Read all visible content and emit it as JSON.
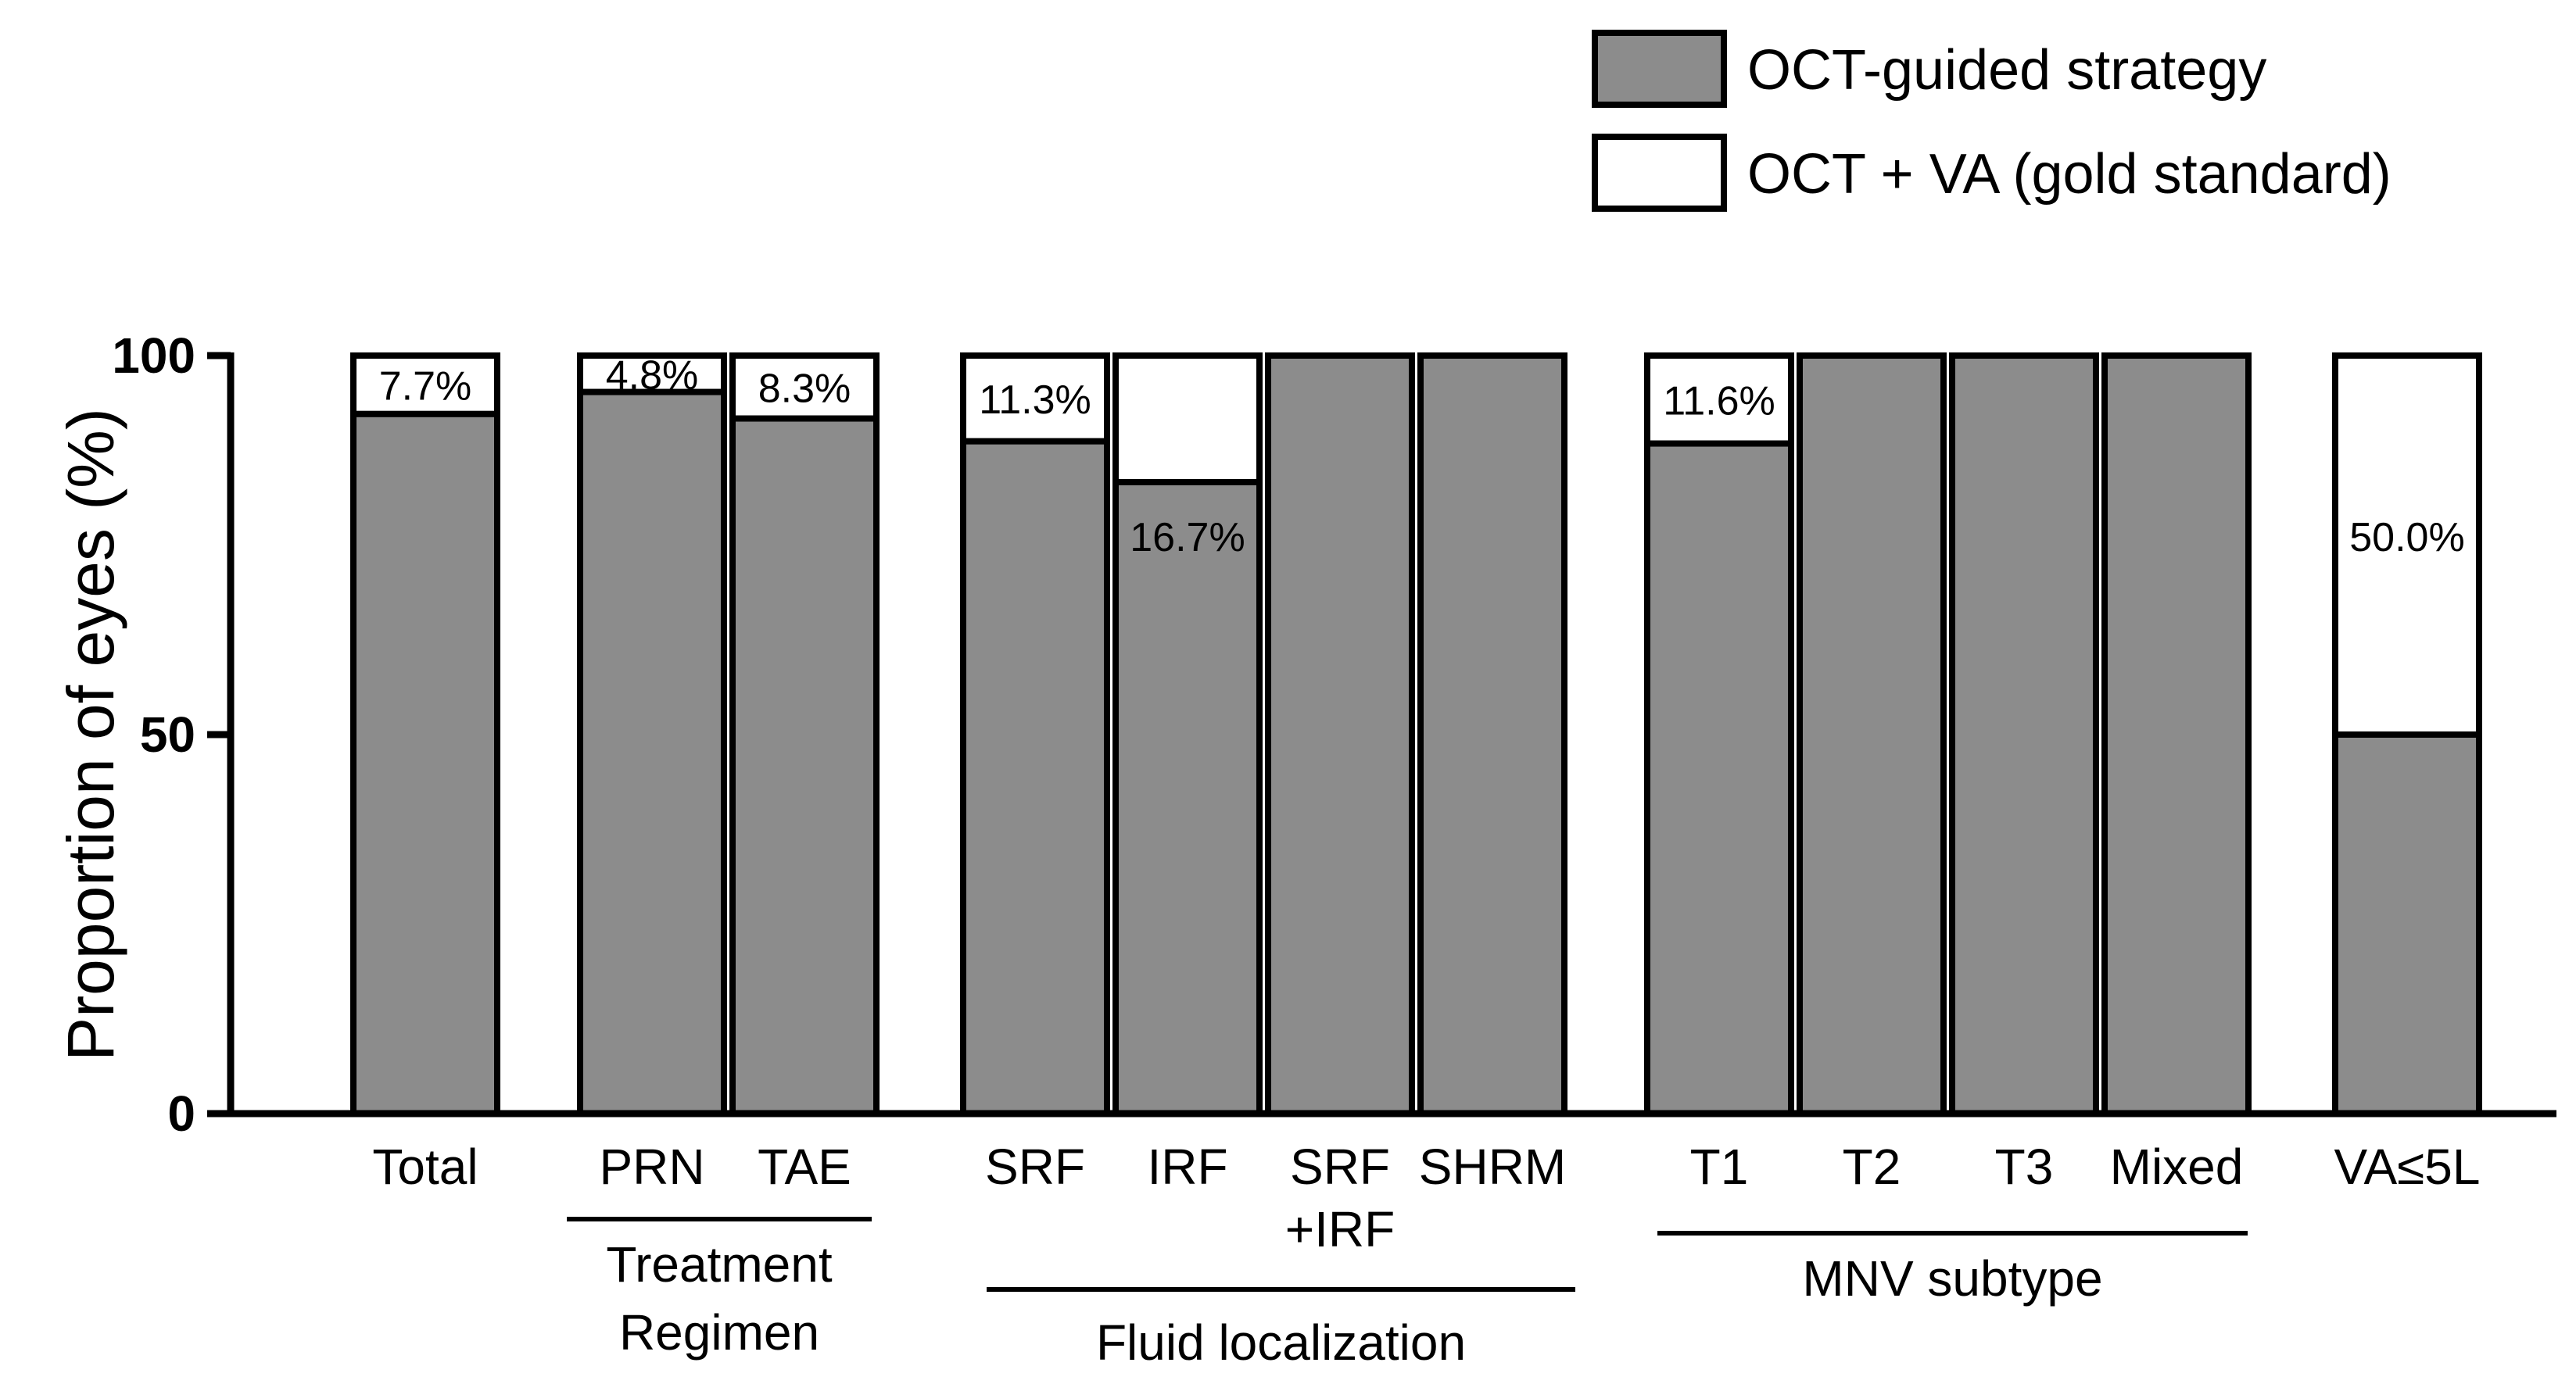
{
  "chart_data": {
    "type": "bar",
    "stacked": true,
    "title": "",
    "xlabel": "",
    "ylabel": "Proportion of eyes (%)",
    "ylim": [
      0,
      100
    ],
    "yticks": [
      0,
      50,
      100
    ],
    "legend_position": "top-right",
    "categories": [
      "Total",
      "PRN",
      "TAE",
      "SRF",
      "IRF",
      "SRF\n+IRF",
      "SHRM",
      "T1",
      "T2",
      "T3",
      "Mixed",
      "VA≤5L"
    ],
    "series": [
      {
        "name": "OCT-guided strategy",
        "color": "#8c8c8c",
        "values": [
          92.3,
          95.2,
          91.7,
          88.7,
          83.3,
          100,
          100,
          88.4,
          100,
          100,
          100,
          50.0
        ]
      },
      {
        "name": "OCT + VA (gold standard)",
        "color": "#ffffff",
        "values": [
          7.7,
          4.8,
          8.3,
          11.3,
          16.7,
          0,
          0,
          11.6,
          0,
          0,
          0,
          50.0
        ]
      }
    ],
    "data_labels": [
      "7.7%",
      "4.8%",
      "8.3%",
      "11.3%",
      "16.7%",
      "",
      "",
      "11.6%",
      "",
      "",
      "",
      "50.0%"
    ],
    "groups": [
      {
        "label": "Treatment\nRegimen",
        "categories": [
          "PRN",
          "TAE"
        ]
      },
      {
        "label": "Fluid localization",
        "categories": [
          "SRF",
          "IRF",
          "SRF\n+IRF",
          "SHRM"
        ]
      },
      {
        "label": "MNV subtype",
        "categories": [
          "T1",
          "T2",
          "T3",
          "Mixed"
        ]
      }
    ]
  }
}
